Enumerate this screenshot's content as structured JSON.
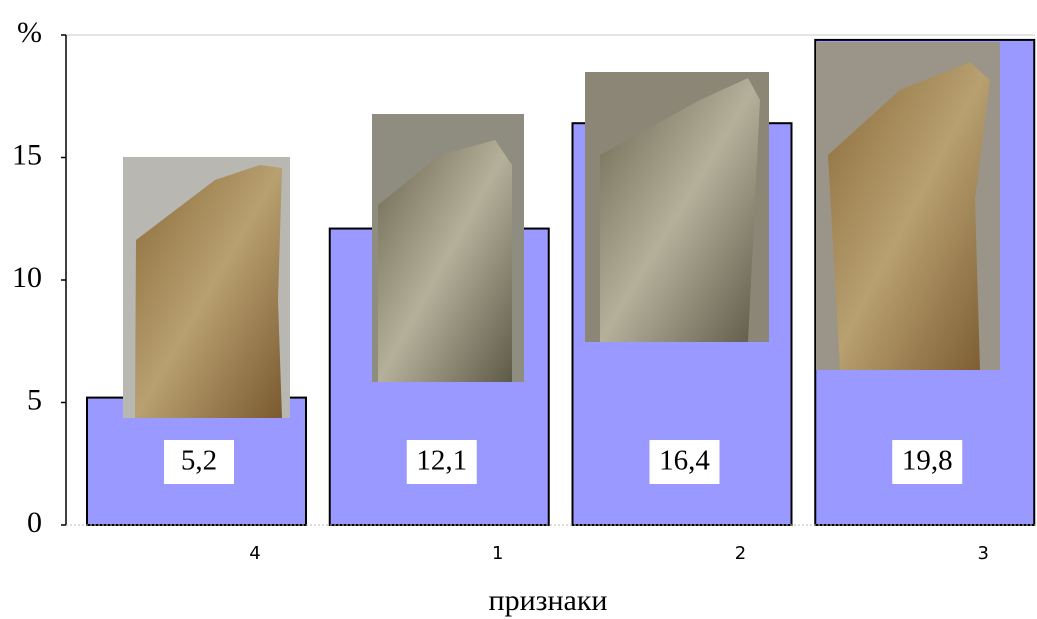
{
  "chart_data": {
    "type": "bar",
    "x_label": "признаки",
    "categories": [
      "4",
      "1",
      "2",
      "3"
    ],
    "values": [
      5.2,
      12.1,
      16.4,
      19.8
    ],
    "value_labels": [
      "5,2",
      "12,1",
      "16,4",
      "19,8"
    ],
    "color": "#9999ff",
    "ylim": [
      0,
      20
    ],
    "yticks": [
      0,
      5,
      10,
      15,
      {
        "value": 20,
        "label": "%"
      }
    ]
  }
}
